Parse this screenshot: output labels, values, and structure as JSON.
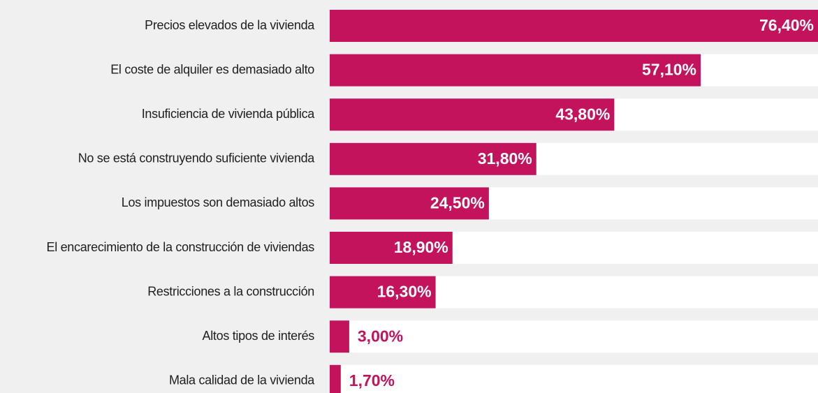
{
  "chart_data": {
    "type": "bar",
    "orientation": "horizontal",
    "color": "#c2135c",
    "categories": [
      "Precios elevados de la vivienda",
      "El coste de alquiler es demasiado alto",
      "Insuficiencia de vivienda pública",
      "No se está construyendo suficiente vivienda",
      "Los impuestos son demasiado altos",
      "El encarecimiento de la construcción de viviendas",
      "Restricciones a la construcción",
      "Altos tipos de interés",
      "Mala calidad de la vivienda"
    ],
    "values": [
      76.4,
      57.1,
      43.8,
      31.8,
      24.5,
      18.9,
      16.3,
      3.0,
      1.7
    ],
    "value_labels": [
      "76,40%",
      "57,10%",
      "43,80%",
      "31,80%",
      "24,50%",
      "18,90%",
      "16,30%",
      "3,00%",
      "1,70%"
    ]
  }
}
